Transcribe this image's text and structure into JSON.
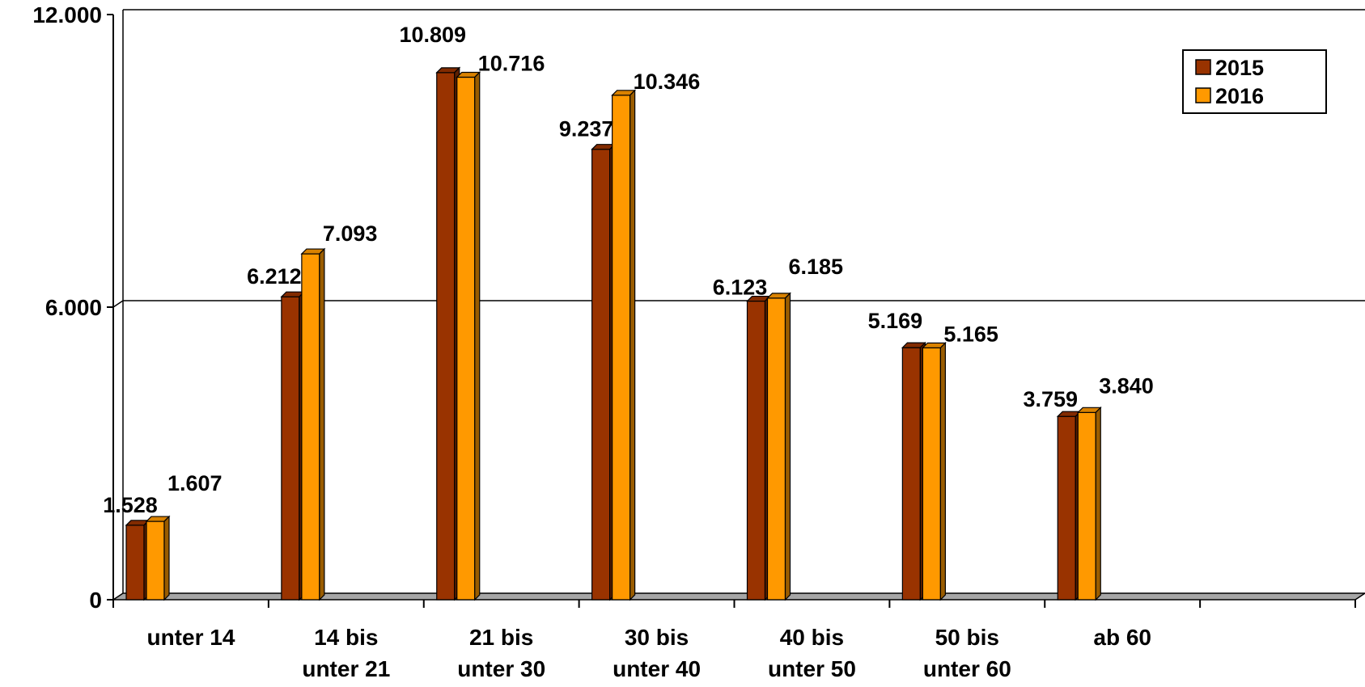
{
  "chart_data": {
    "type": "bar",
    "categories": [
      [
        "unter 14"
      ],
      [
        "14 bis",
        "unter 21"
      ],
      [
        "21 bis",
        "unter 30"
      ],
      [
        "30 bis",
        "unter 40"
      ],
      [
        "40 bis",
        "unter 50"
      ],
      [
        "50 bis",
        "unter 60"
      ],
      [
        "ab 60"
      ]
    ],
    "series": [
      {
        "name": "2015",
        "color": "#993300",
        "values": [
          1528,
          6212,
          10809,
          9237,
          6123,
          5169,
          3759
        ],
        "labels": [
          "1.528",
          "6.212",
          "10.809",
          "9.237",
          "6.123",
          "5.169",
          "3.759"
        ]
      },
      {
        "name": "2016",
        "color": "#FF9900",
        "values": [
          1607,
          7093,
          10716,
          10346,
          6185,
          5165,
          3840
        ],
        "labels": [
          "1.607",
          "7.093",
          "10.716",
          "10.346",
          "6.185",
          "5.165",
          "3.840"
        ]
      }
    ],
    "y_ticks": [
      {
        "value": 0,
        "label": "0"
      },
      {
        "value": 6000,
        "label": "6.000"
      },
      {
        "value": 12000,
        "label": "12.000"
      }
    ],
    "ylim": [
      0,
      12000
    ],
    "grid": true,
    "legend_position": "top-right",
    "title": "",
    "xlabel": "",
    "ylabel": ""
  }
}
